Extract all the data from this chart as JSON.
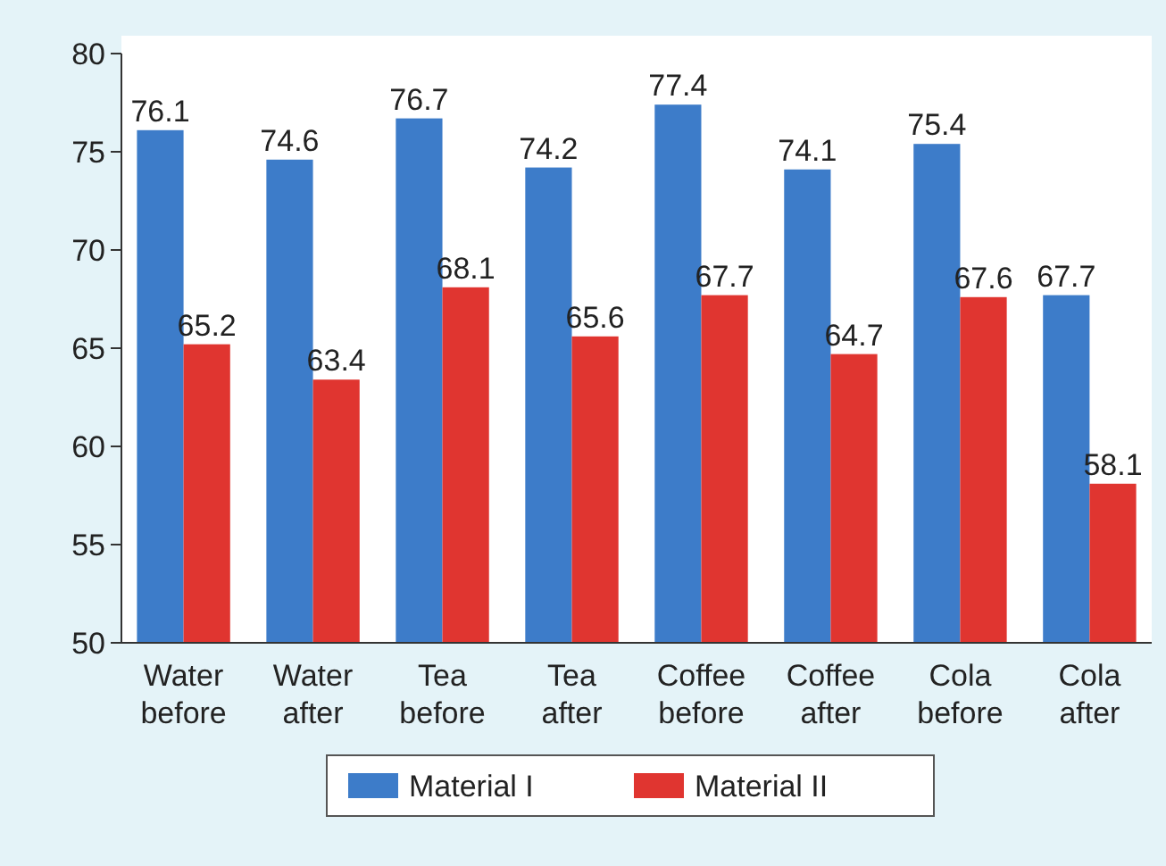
{
  "chart_data": {
    "type": "bar",
    "categories": [
      "Water before",
      "Water after",
      "Tea before",
      "Tea after",
      "Coffee before",
      "Coffee after",
      "Cola before",
      "Cola after"
    ],
    "series": [
      {
        "name": "Material I",
        "color": "#3d7cc9",
        "values": [
          76.1,
          74.6,
          76.7,
          74.2,
          77.4,
          74.1,
          75.4,
          67.7
        ]
      },
      {
        "name": "Material II",
        "color": "#e03530",
        "values": [
          65.2,
          63.4,
          68.1,
          65.6,
          67.7,
          64.7,
          67.6,
          58.1
        ]
      }
    ],
    "ylim": [
      50,
      80
    ],
    "yticks": [
      50,
      55,
      60,
      65,
      70,
      75,
      80
    ],
    "data_labels": true,
    "legend": "bottom",
    "grid": false
  }
}
